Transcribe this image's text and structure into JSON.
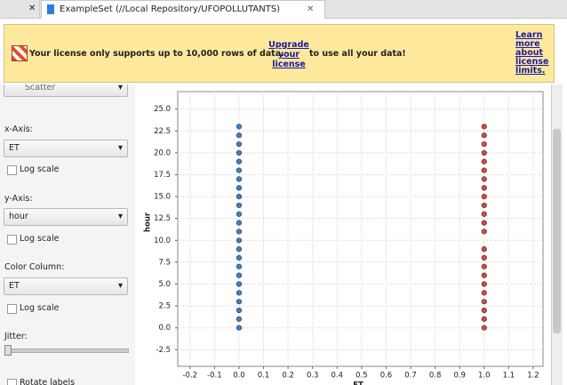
{
  "tabs": {
    "active": "ExampleSet (//Local Repository/UFOPOLLUTANTS)"
  },
  "banner": {
    "message": "Your license only supports up to 10,000 rows of data.",
    "upgrade_link": "Upgrade your license",
    "suffix": "to use all your data!",
    "learn_link": "Learn more about license limits."
  },
  "panel": {
    "plot_type": "Scatter",
    "controls": [
      {
        "label": "x-Axis:",
        "value": "ET",
        "log_scale": "Log scale"
      },
      {
        "label": "y-Axis:",
        "value": "hour",
        "log_scale": "Log scale"
      },
      {
        "label": "Color Column:",
        "value": "ET",
        "log_scale": "Log scale"
      }
    ],
    "jitter": "Jitter:",
    "rotate_labels": "Rotate labels"
  },
  "chart_data": {
    "type": "scatter",
    "x_label": "ET",
    "y_label": "hour",
    "xlim": [
      -0.25,
      1.24
    ],
    "ylim": [
      -4.4,
      27
    ],
    "xticks": [
      -0.2,
      -0.1,
      {
        "value": 0,
        "label": "0.0"
      },
      0.1,
      0.2,
      0.3,
      0.4,
      0.5,
      0.6,
      0.7,
      0.8,
      0.9,
      {
        "value": 1,
        "label": "1.0"
      },
      1.1,
      1.2
    ],
    "yticks": [
      -2.5,
      {
        "value": 0,
        "label": "0.0"
      },
      2.5,
      {
        "value": 5,
        "label": "5.0"
      },
      7.5,
      {
        "value": 10,
        "label": "10.0"
      },
      12.5,
      {
        "value": 15,
        "label": "15.0"
      },
      17.5,
      {
        "value": 20,
        "label": "20.0"
      },
      22.5,
      {
        "value": 25,
        "label": "25.0"
      }
    ],
    "grid": true,
    "series": [
      {
        "color": "#3f7fd0",
        "x": [
          0,
          0,
          0,
          0,
          0,
          0,
          0,
          0,
          0,
          0,
          0,
          0,
          0,
          0,
          0,
          0,
          0,
          0,
          0,
          0,
          0,
          0,
          0,
          0
        ],
        "values": [
          0,
          1,
          2,
          3,
          4,
          5,
          6,
          7,
          8,
          9,
          10,
          11,
          12,
          13,
          14,
          15,
          16,
          17,
          18,
          19,
          20,
          21,
          22,
          23
        ]
      },
      {
        "color": "#d9463f",
        "x": [
          1,
          1,
          1,
          1,
          1,
          1,
          1,
          1,
          1,
          1,
          1,
          1,
          1,
          1,
          1,
          1,
          1,
          1,
          1,
          1,
          1,
          1,
          1
        ],
        "values": [
          0,
          1,
          2,
          3,
          4,
          5,
          6,
          7,
          8,
          9,
          11,
          12,
          13,
          14,
          15,
          16,
          17,
          18,
          19,
          20,
          21,
          22,
          23
        ]
      }
    ]
  }
}
